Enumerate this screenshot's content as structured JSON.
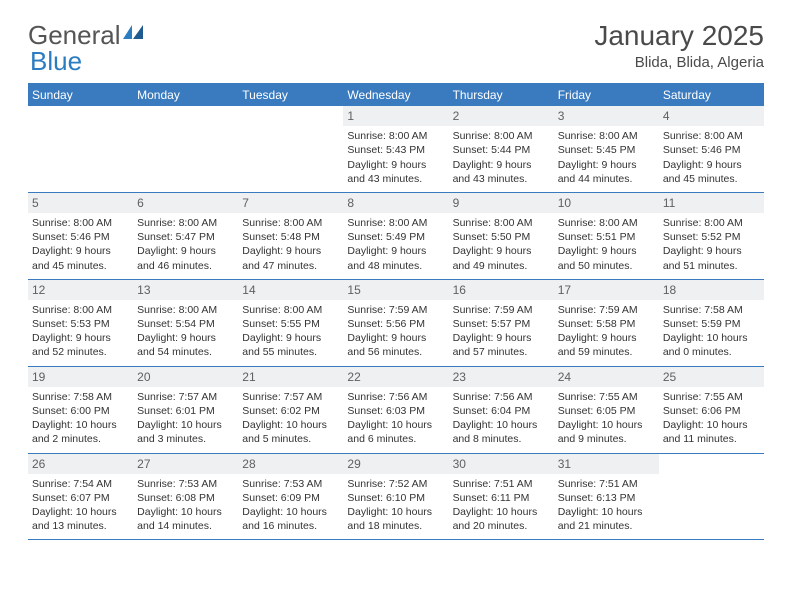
{
  "logo": {
    "part1": "General",
    "part2": "Blue"
  },
  "title": {
    "month": "January 2025",
    "location": "Blida, Blida, Algeria"
  },
  "dayNames": [
    "Sunday",
    "Monday",
    "Tuesday",
    "Wednesday",
    "Thursday",
    "Friday",
    "Saturday"
  ],
  "colors": {
    "headerBar": "#3a7abf",
    "dayNumBg": "#eef0f2",
    "text": "#333333",
    "logoGray": "#555555",
    "logoBlue": "#2b7cc0"
  },
  "layout": {
    "startOffset": 3,
    "daysInMonth": 31
  },
  "days": [
    {
      "n": "1",
      "sr": "8:00 AM",
      "ss": "5:43 PM",
      "dl": "9 hours and 43 minutes."
    },
    {
      "n": "2",
      "sr": "8:00 AM",
      "ss": "5:44 PM",
      "dl": "9 hours and 43 minutes."
    },
    {
      "n": "3",
      "sr": "8:00 AM",
      "ss": "5:45 PM",
      "dl": "9 hours and 44 minutes."
    },
    {
      "n": "4",
      "sr": "8:00 AM",
      "ss": "5:46 PM",
      "dl": "9 hours and 45 minutes."
    },
    {
      "n": "5",
      "sr": "8:00 AM",
      "ss": "5:46 PM",
      "dl": "9 hours and 45 minutes."
    },
    {
      "n": "6",
      "sr": "8:00 AM",
      "ss": "5:47 PM",
      "dl": "9 hours and 46 minutes."
    },
    {
      "n": "7",
      "sr": "8:00 AM",
      "ss": "5:48 PM",
      "dl": "9 hours and 47 minutes."
    },
    {
      "n": "8",
      "sr": "8:00 AM",
      "ss": "5:49 PM",
      "dl": "9 hours and 48 minutes."
    },
    {
      "n": "9",
      "sr": "8:00 AM",
      "ss": "5:50 PM",
      "dl": "9 hours and 49 minutes."
    },
    {
      "n": "10",
      "sr": "8:00 AM",
      "ss": "5:51 PM",
      "dl": "9 hours and 50 minutes."
    },
    {
      "n": "11",
      "sr": "8:00 AM",
      "ss": "5:52 PM",
      "dl": "9 hours and 51 minutes."
    },
    {
      "n": "12",
      "sr": "8:00 AM",
      "ss": "5:53 PM",
      "dl": "9 hours and 52 minutes."
    },
    {
      "n": "13",
      "sr": "8:00 AM",
      "ss": "5:54 PM",
      "dl": "9 hours and 54 minutes."
    },
    {
      "n": "14",
      "sr": "8:00 AM",
      "ss": "5:55 PM",
      "dl": "9 hours and 55 minutes."
    },
    {
      "n": "15",
      "sr": "7:59 AM",
      "ss": "5:56 PM",
      "dl": "9 hours and 56 minutes."
    },
    {
      "n": "16",
      "sr": "7:59 AM",
      "ss": "5:57 PM",
      "dl": "9 hours and 57 minutes."
    },
    {
      "n": "17",
      "sr": "7:59 AM",
      "ss": "5:58 PM",
      "dl": "9 hours and 59 minutes."
    },
    {
      "n": "18",
      "sr": "7:58 AM",
      "ss": "5:59 PM",
      "dl": "10 hours and 0 minutes."
    },
    {
      "n": "19",
      "sr": "7:58 AM",
      "ss": "6:00 PM",
      "dl": "10 hours and 2 minutes."
    },
    {
      "n": "20",
      "sr": "7:57 AM",
      "ss": "6:01 PM",
      "dl": "10 hours and 3 minutes."
    },
    {
      "n": "21",
      "sr": "7:57 AM",
      "ss": "6:02 PM",
      "dl": "10 hours and 5 minutes."
    },
    {
      "n": "22",
      "sr": "7:56 AM",
      "ss": "6:03 PM",
      "dl": "10 hours and 6 minutes."
    },
    {
      "n": "23",
      "sr": "7:56 AM",
      "ss": "6:04 PM",
      "dl": "10 hours and 8 minutes."
    },
    {
      "n": "24",
      "sr": "7:55 AM",
      "ss": "6:05 PM",
      "dl": "10 hours and 9 minutes."
    },
    {
      "n": "25",
      "sr": "7:55 AM",
      "ss": "6:06 PM",
      "dl": "10 hours and 11 minutes."
    },
    {
      "n": "26",
      "sr": "7:54 AM",
      "ss": "6:07 PM",
      "dl": "10 hours and 13 minutes."
    },
    {
      "n": "27",
      "sr": "7:53 AM",
      "ss": "6:08 PM",
      "dl": "10 hours and 14 minutes."
    },
    {
      "n": "28",
      "sr": "7:53 AM",
      "ss": "6:09 PM",
      "dl": "10 hours and 16 minutes."
    },
    {
      "n": "29",
      "sr": "7:52 AM",
      "ss": "6:10 PM",
      "dl": "10 hours and 18 minutes."
    },
    {
      "n": "30",
      "sr": "7:51 AM",
      "ss": "6:11 PM",
      "dl": "10 hours and 20 minutes."
    },
    {
      "n": "31",
      "sr": "7:51 AM",
      "ss": "6:13 PM",
      "dl": "10 hours and 21 minutes."
    }
  ],
  "labels": {
    "sunrise": "Sunrise: ",
    "sunset": "Sunset: ",
    "daylight": "Daylight: "
  }
}
